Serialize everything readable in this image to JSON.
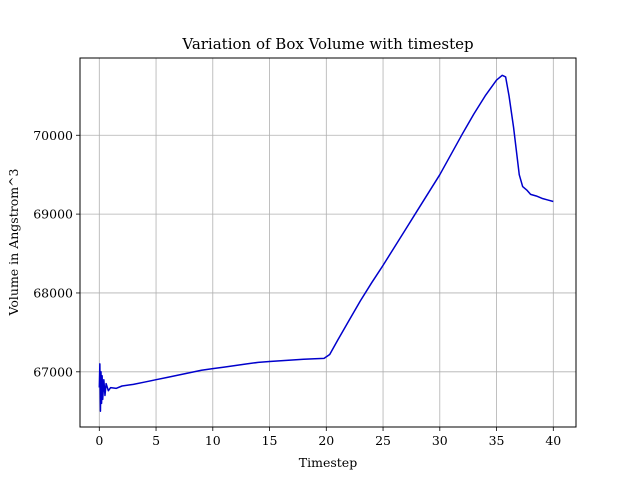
{
  "chart_data": {
    "type": "line",
    "title": "Variation of Box Volume with timestep",
    "xlabel": "Timestep",
    "ylabel": "Volume in Angstrom^3",
    "xlim": [
      -1.7,
      42.0
    ],
    "ylim": [
      66300,
      70980
    ],
    "x_ticks": [
      0,
      5,
      10,
      15,
      20,
      25,
      30,
      35,
      40
    ],
    "y_ticks": [
      67000,
      68000,
      69000,
      70000
    ],
    "grid": true,
    "series": [
      {
        "color": "#0000cc",
        "x": [
          0.0,
          0.05,
          0.1,
          0.15,
          0.2,
          0.25,
          0.3,
          0.4,
          0.5,
          0.6,
          0.8,
          1.0,
          1.5,
          2.0,
          3.0,
          4.0,
          5.0,
          6.0,
          7.0,
          8.0,
          9.0,
          10.0,
          11.0,
          12.0,
          13.0,
          14.0,
          15.0,
          16.0,
          17.0,
          18.0,
          19.0,
          19.8,
          20.3,
          21.0,
          22.0,
          23.0,
          24.0,
          25.0,
          26.0,
          27.0,
          28.0,
          29.0,
          30.0,
          31.0,
          32.0,
          33.0,
          34.0,
          35.0,
          35.5,
          35.8,
          36.1,
          36.5,
          37.0,
          37.3,
          37.7,
          38.0,
          38.5,
          39.0,
          39.5,
          40.0
        ],
        "y": [
          66800,
          67100,
          66500,
          67000,
          66600,
          66950,
          66650,
          66900,
          66700,
          66850,
          66760,
          66800,
          66790,
          66820,
          66840,
          66870,
          66900,
          66930,
          66960,
          66990,
          67020,
          67040,
          67060,
          67080,
          67100,
          67120,
          67130,
          67140,
          67150,
          67160,
          67165,
          67170,
          67220,
          67400,
          67650,
          67900,
          68130,
          68350,
          68580,
          68810,
          69040,
          69270,
          69500,
          69760,
          70020,
          70270,
          70500,
          70700,
          70760,
          70740,
          70500,
          70100,
          69500,
          69350,
          69300,
          69250,
          69230,
          69200,
          69180,
          69160
        ]
      }
    ]
  }
}
